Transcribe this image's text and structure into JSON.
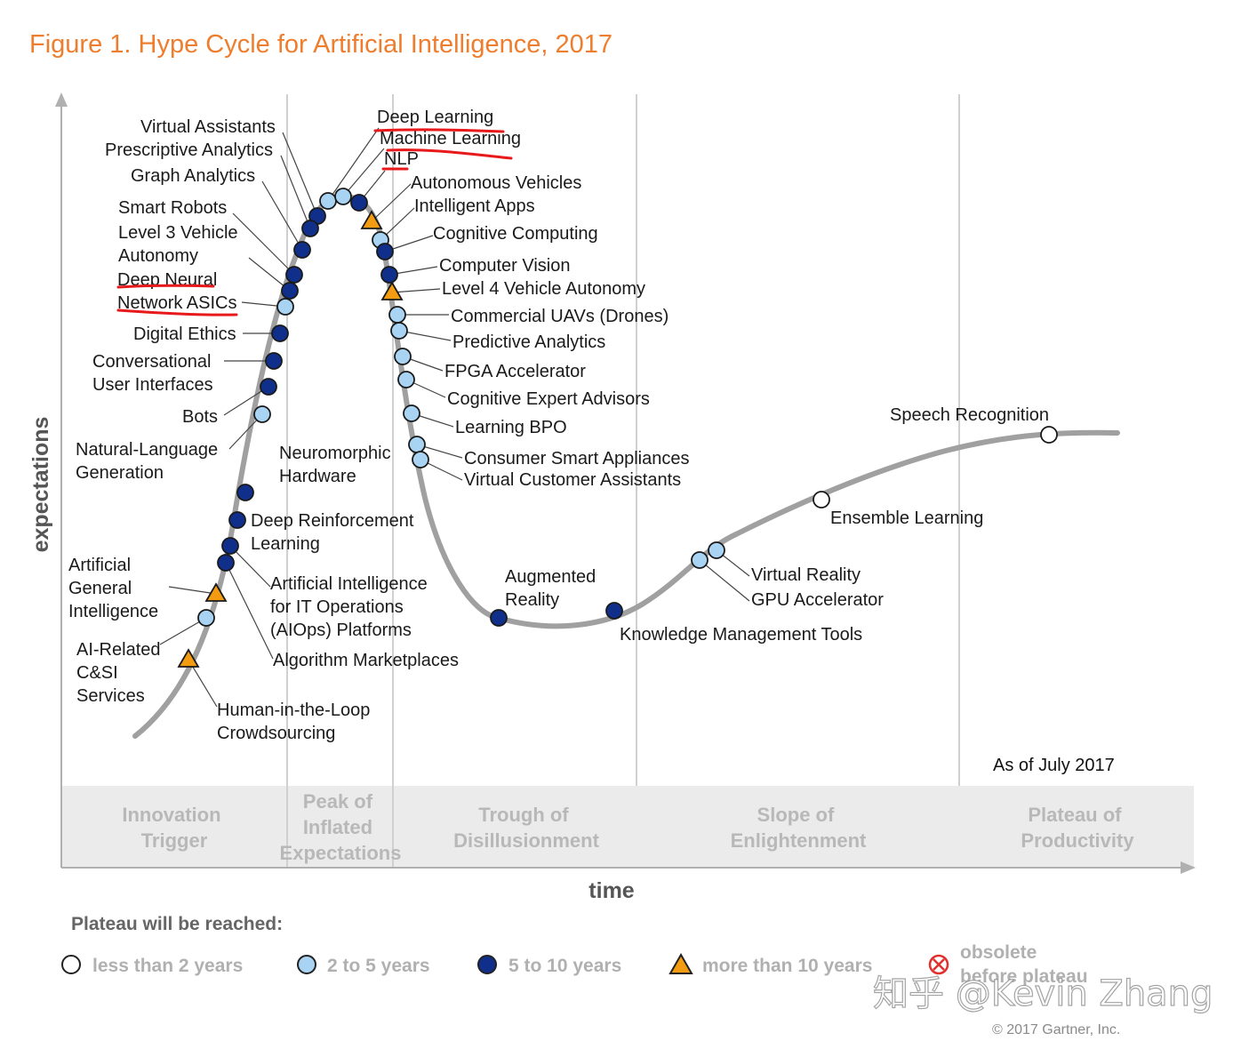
{
  "chart_data": {
    "type": "hype-cycle",
    "title": "Figure 1. Hype Cycle for Artificial Intelligence, 2017",
    "xlabel": "time",
    "ylabel": "expectations",
    "as_of": "As of July 2017",
    "phases": [
      {
        "lines": [
          "Innovation",
          "Trigger"
        ]
      },
      {
        "lines": [
          "Peak of",
          "Inflated",
          "Expectations"
        ]
      },
      {
        "lines": [
          "Trough of",
          "Disillusionment"
        ]
      },
      {
        "lines": [
          "Slope of",
          "Enlightenment"
        ]
      },
      {
        "lines": [
          "Plateau of",
          "Productivity"
        ]
      }
    ],
    "legend_title": "Plateau will be reached:",
    "legend": [
      {
        "key": "lt2",
        "label": "less than 2 years"
      },
      {
        "key": "2to5",
        "label": "2 to 5 years"
      },
      {
        "key": "5to10",
        "label": "5 to 10 years"
      },
      {
        "key": "gt10",
        "label": "more than 10 years"
      },
      {
        "key": "obsolete",
        "label": "obsolete before plateau"
      }
    ],
    "colors": {
      "title": "#ee7e2d",
      "curve": "#a0a0a0",
      "band": "#ebebeb",
      "lt2": "#ffffff",
      "2to5": "#a9d3f3",
      "5to10": "#0f2f8a",
      "gt10": "#f39c12",
      "obsolete": "#e0312f",
      "underline": "#e8191b"
    },
    "technologies": [
      {
        "name": "Virtual Assistants",
        "category": "5to10",
        "phase": "Peak of Inflated Expectations"
      },
      {
        "name": "Prescriptive Analytics",
        "category": "5to10",
        "phase": "Peak of Inflated Expectations"
      },
      {
        "name": "Graph Analytics",
        "category": "5to10",
        "phase": "Peak of Inflated Expectations"
      },
      {
        "name": "Smart Robots",
        "category": "5to10",
        "phase": "Innovation Trigger"
      },
      {
        "name": "Level 3 Vehicle Autonomy",
        "category": "5to10",
        "phase": "Innovation Trigger"
      },
      {
        "name": "Deep Neural Network ASICs",
        "category": "2to5",
        "phase": "Innovation Trigger"
      },
      {
        "name": "Digital Ethics",
        "category": "5to10",
        "phase": "Innovation Trigger"
      },
      {
        "name": "Conversational User Interfaces",
        "category": "5to10",
        "phase": "Innovation Trigger"
      },
      {
        "name": "Bots",
        "category": "5to10",
        "phase": "Innovation Trigger"
      },
      {
        "name": "Natural-Language Generation",
        "category": "2to5",
        "phase": "Innovation Trigger"
      },
      {
        "name": "Neuromorphic Hardware",
        "category": "5to10",
        "phase": "Innovation Trigger"
      },
      {
        "name": "Deep Reinforcement Learning",
        "category": "5to10",
        "phase": "Innovation Trigger"
      },
      {
        "name": "Artificial Intelligence for IT Operations (AIOps) Platforms",
        "category": "5to10",
        "phase": "Innovation Trigger"
      },
      {
        "name": "Algorithm Marketplaces",
        "category": "5to10",
        "phase": "Innovation Trigger"
      },
      {
        "name": "Artificial General Intelligence",
        "category": "gt10",
        "phase": "Innovation Trigger"
      },
      {
        "name": "AI-Related C&SI Services",
        "category": "2to5",
        "phase": "Innovation Trigger"
      },
      {
        "name": "Human-in-the-Loop Crowdsourcing",
        "category": "gt10",
        "phase": "Innovation Trigger"
      },
      {
        "name": "Deep Learning",
        "category": "2to5",
        "phase": "Peak of Inflated Expectations"
      },
      {
        "name": "Machine Learning",
        "category": "2to5",
        "phase": "Peak of Inflated Expectations"
      },
      {
        "name": "NLP",
        "category": "5to10",
        "phase": "Peak of Inflated Expectations"
      },
      {
        "name": "Autonomous Vehicles",
        "category": "gt10",
        "phase": "Peak of Inflated Expectations"
      },
      {
        "name": "Intelligent Apps",
        "category": "2to5",
        "phase": "Peak of Inflated Expectations"
      },
      {
        "name": "Cognitive Computing",
        "category": "5to10",
        "phase": "Peak of Inflated Expectations"
      },
      {
        "name": "Computer Vision",
        "category": "5to10",
        "phase": "Trough of Disillusionment"
      },
      {
        "name": "Level 4 Vehicle Autonomy",
        "category": "gt10",
        "phase": "Trough of Disillusionment"
      },
      {
        "name": "Commercial UAVs (Drones)",
        "category": "2to5",
        "phase": "Trough of Disillusionment"
      },
      {
        "name": "Predictive Analytics",
        "category": "2to5",
        "phase": "Trough of Disillusionment"
      },
      {
        "name": "FPGA Accelerator",
        "category": "2to5",
        "phase": "Trough of Disillusionment"
      },
      {
        "name": "Cognitive Expert Advisors",
        "category": "2to5",
        "phase": "Trough of Disillusionment"
      },
      {
        "name": "Learning BPO",
        "category": "2to5",
        "phase": "Trough of Disillusionment"
      },
      {
        "name": "Consumer Smart Appliances",
        "category": "2to5",
        "phase": "Trough of Disillusionment"
      },
      {
        "name": "Virtual Customer Assistants",
        "category": "2to5",
        "phase": "Trough of Disillusionment"
      },
      {
        "name": "Augmented Reality",
        "category": "5to10",
        "phase": "Trough of Disillusionment"
      },
      {
        "name": "Knowledge Management Tools",
        "category": "5to10",
        "phase": "Trough of Disillusionment"
      },
      {
        "name": "Virtual Reality",
        "category": "2to5",
        "phase": "Slope of Enlightenment"
      },
      {
        "name": "GPU Accelerator",
        "category": "2to5",
        "phase": "Slope of Enlightenment"
      },
      {
        "name": "Ensemble Learning",
        "category": "lt2",
        "phase": "Slope of Enlightenment"
      },
      {
        "name": "Speech Recognition",
        "category": "lt2",
        "phase": "Plateau of Productivity"
      }
    ]
  },
  "watermark": "知乎 @Kevin Zhang",
  "copyright": "© 2017 Gartner, Inc."
}
